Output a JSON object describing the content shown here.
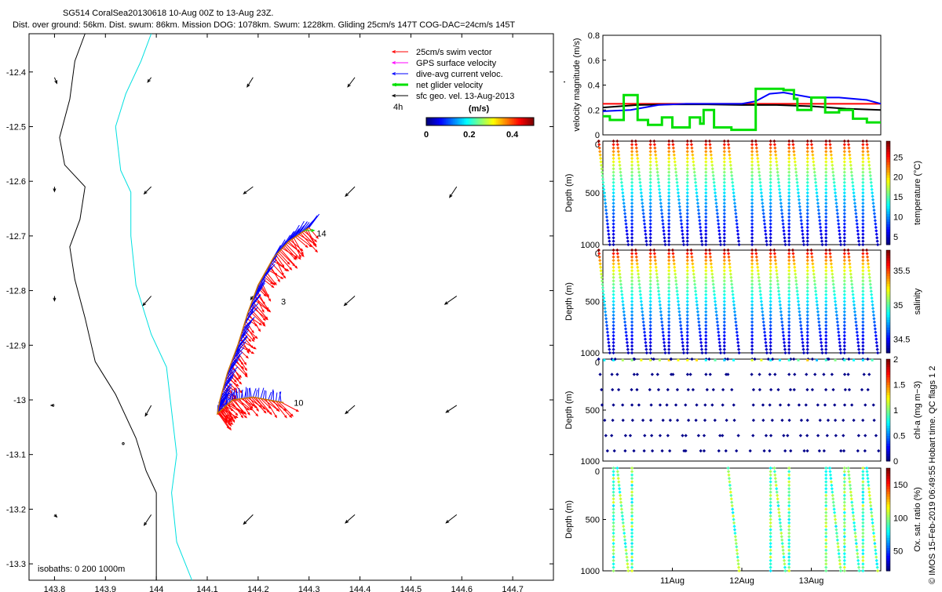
{
  "header": {
    "title_line1": "SG514 CoralSea20130618 10-Aug 00Z to 13-Aug 23Z.",
    "title_line2": "Dist. over ground: 56km. Dist. swum: 86km. Mission DOG: 1078km. Swum: 1228km. Gliding 25cm/s 147T COG-DAC=24cm/s 145T"
  },
  "footer_note": "© IMOS 15-Feb-2019 06:49:55 Hobart time. QC flags 1  2",
  "colors": {
    "swim": "#ff0000",
    "gps": "#ff00ff",
    "dac": "#0000ff",
    "net": "#00e000",
    "geo": "#000000",
    "isobath_0": "#000000",
    "isobath_200": "#00e0e0"
  },
  "chart_data": [
    {
      "type": "scatter",
      "name": "map",
      "xlim": [
        143.75,
        144.78
      ],
      "ylim": [
        -13.33,
        -12.33
      ],
      "xticks": [
        "143.8",
        "143.9",
        "144",
        "144.1",
        "144.2",
        "144.3",
        "144.4",
        "144.5",
        "144.6",
        "144.7"
      ],
      "yticks": [
        "-12.4",
        "-12.5",
        "-12.6",
        "-12.7",
        "-12.8",
        "-12.9",
        "-13",
        "-13.1",
        "-13.2",
        "-13.3"
      ],
      "legend": {
        "items": [
          "25cm/s swim vector",
          "GPS surface velocity",
          "dive-avg current veloc.",
          "net glider velocity",
          "sfc geo. vel. 13-Aug-2013"
        ],
        "interval": "4h",
        "colorbar_label": "(m/s)",
        "colorbar_ticks": [
          "0",
          "0.2",
          "0.4"
        ],
        "colorbar_range": [
          0,
          0.5
        ]
      },
      "isobaths_label": "isobaths: 0   200  1000m",
      "isobath_0m": [
        [
          143.86,
          -12.33
        ],
        [
          143.84,
          -12.38
        ],
        [
          143.83,
          -12.45
        ],
        [
          143.81,
          -12.52
        ],
        [
          143.82,
          -12.57
        ],
        [
          143.86,
          -12.61
        ],
        [
          143.85,
          -12.67
        ],
        [
          143.83,
          -12.72
        ],
        [
          143.84,
          -12.78
        ],
        [
          143.86,
          -12.85
        ],
        [
          143.88,
          -12.93
        ],
        [
          143.92,
          -12.99
        ],
        [
          143.96,
          -13.07
        ],
        [
          143.98,
          -13.13
        ],
        [
          144.0,
          -13.17
        ],
        [
          144.0,
          -13.33
        ]
      ],
      "isobath_200m": [
        [
          143.99,
          -12.33
        ],
        [
          143.97,
          -12.38
        ],
        [
          143.94,
          -12.44
        ],
        [
          143.92,
          -12.5
        ],
        [
          143.93,
          -12.58
        ],
        [
          143.95,
          -12.62
        ],
        [
          143.95,
          -12.7
        ],
        [
          143.96,
          -12.79
        ],
        [
          143.99,
          -12.88
        ],
        [
          144.02,
          -12.94
        ],
        [
          144.03,
          -13.02
        ],
        [
          144.04,
          -13.1
        ],
        [
          144.03,
          -13.17
        ],
        [
          144.04,
          -13.26
        ],
        [
          144.07,
          -13.33
        ]
      ],
      "glider_track": [
        [
          144.3,
          -12.685
        ],
        [
          144.26,
          -12.71
        ],
        [
          144.23,
          -12.74
        ],
        [
          144.2,
          -12.79
        ],
        [
          144.18,
          -12.84
        ],
        [
          144.16,
          -12.9
        ],
        [
          144.14,
          -12.95
        ],
        [
          144.125,
          -13.0
        ],
        [
          144.12,
          -13.025
        ],
        [
          144.15,
          -13.0
        ],
        [
          144.19,
          -12.995
        ],
        [
          144.25,
          -13.005
        ]
      ],
      "track_labels": [
        {
          "text": "14",
          "x": 144.315,
          "y": -12.695
        },
        {
          "text": "3",
          "x": 144.245,
          "y": -12.82
        },
        {
          "text": "10",
          "x": 144.27,
          "y": -13.005
        }
      ],
      "geo_vectors": [
        {
          "x": 143.8,
          "y": -12.41,
          "u": 0.02,
          "v": -0.05
        },
        {
          "x": 143.99,
          "y": -12.41,
          "u": -0.03,
          "v": -0.04
        },
        {
          "x": 144.19,
          "y": -12.41,
          "u": -0.05,
          "v": -0.08
        },
        {
          "x": 144.39,
          "y": -12.41,
          "u": -0.06,
          "v": -0.08
        },
        {
          "x": 143.8,
          "y": -12.61,
          "u": 0.0,
          "v": -0.04
        },
        {
          "x": 143.99,
          "y": -12.61,
          "u": -0.06,
          "v": -0.06
        },
        {
          "x": 144.19,
          "y": -12.61,
          "u": -0.08,
          "v": -0.06
        },
        {
          "x": 144.39,
          "y": -12.61,
          "u": -0.08,
          "v": -0.08
        },
        {
          "x": 144.59,
          "y": -12.61,
          "u": -0.06,
          "v": -0.09
        },
        {
          "x": 143.8,
          "y": -12.81,
          "u": 0.0,
          "v": -0.04
        },
        {
          "x": 143.99,
          "y": -12.81,
          "u": -0.07,
          "v": -0.08
        },
        {
          "x": 144.19,
          "y": -12.81,
          "u": -0.02,
          "v": -0.03
        },
        {
          "x": 144.39,
          "y": -12.81,
          "u": -0.09,
          "v": -0.08
        },
        {
          "x": 144.59,
          "y": -12.81,
          "u": -0.1,
          "v": -0.07
        },
        {
          "x": 143.8,
          "y": -13.01,
          "u": -0.03,
          "v": 0.0
        },
        {
          "x": 143.99,
          "y": -13.01,
          "u": -0.05,
          "v": -0.09
        },
        {
          "x": 144.39,
          "y": -13.01,
          "u": -0.08,
          "v": -0.07
        },
        {
          "x": 144.59,
          "y": -13.01,
          "u": -0.09,
          "v": -0.06
        },
        {
          "x": 143.8,
          "y": -13.21,
          "u": 0.02,
          "v": -0.02
        },
        {
          "x": 143.99,
          "y": -13.21,
          "u": -0.06,
          "v": -0.09
        },
        {
          "x": 144.19,
          "y": -13.21,
          "u": -0.08,
          "v": -0.08
        },
        {
          "x": 144.39,
          "y": -13.21,
          "u": -0.08,
          "v": -0.07
        },
        {
          "x": 144.59,
          "y": -13.21,
          "u": -0.09,
          "v": -0.07
        }
      ]
    },
    {
      "type": "line",
      "name": "velocity-panel",
      "ylabel": "velocity magnitude (m/s)",
      "ylim": [
        0,
        0.8
      ],
      "yticks": [
        "0",
        "0.2",
        "0.4",
        "0.6",
        "0.8"
      ],
      "xlim": [
        10.0,
        14.0
      ],
      "series": [
        {
          "color": "#ff0000",
          "x": [
            10.0,
            14.0
          ],
          "y": [
            0.25,
            0.25
          ]
        },
        {
          "color": "#000000",
          "x": [
            10.0,
            10.5,
            11.0,
            11.5,
            12.0,
            12.5,
            13.0,
            13.5,
            14.0
          ],
          "y": [
            0.22,
            0.24,
            0.245,
            0.245,
            0.24,
            0.24,
            0.23,
            0.21,
            0.2
          ]
        },
        {
          "color": "#0000ff",
          "x": [
            10.0,
            10.4,
            10.8,
            11.2,
            11.6,
            12.0,
            12.2,
            12.4,
            12.6,
            12.8,
            13.0,
            13.4,
            13.8,
            14.0
          ],
          "y": [
            0.19,
            0.2,
            0.24,
            0.25,
            0.25,
            0.25,
            0.27,
            0.33,
            0.34,
            0.32,
            0.3,
            0.3,
            0.28,
            0.25
          ]
        },
        {
          "color": "#00e000",
          "x": [
            10.0,
            10.1,
            10.1,
            10.3,
            10.3,
            10.5,
            10.5,
            10.65,
            10.65,
            10.85,
            10.85,
            11.0,
            11.0,
            11.25,
            11.25,
            11.4,
            11.4,
            11.45,
            11.45,
            11.6,
            11.6,
            11.85,
            11.85,
            12.2,
            12.2,
            12.6,
            12.6,
            12.75,
            12.75,
            12.8,
            12.8,
            13.0,
            13.0,
            13.2,
            13.2,
            13.4,
            13.4,
            13.6,
            13.6,
            13.8,
            13.8,
            14.0
          ],
          "y": [
            0.15,
            0.15,
            0.12,
            0.12,
            0.32,
            0.32,
            0.12,
            0.12,
            0.08,
            0.08,
            0.14,
            0.14,
            0.06,
            0.06,
            0.14,
            0.14,
            0.09,
            0.09,
            0.2,
            0.2,
            0.06,
            0.06,
            0.04,
            0.04,
            0.37,
            0.37,
            0.36,
            0.36,
            0.29,
            0.29,
            0.2,
            0.2,
            0.3,
            0.3,
            0.18,
            0.18,
            0.2,
            0.2,
            0.13,
            0.13,
            0.1,
            0.1
          ]
        }
      ]
    },
    {
      "type": "scatter",
      "name": "temperature-panel",
      "ylabel": "Depth (m)",
      "cbar_label": "temperature (°C)",
      "ylim": [
        0,
        1000
      ],
      "yticks": [
        "0",
        "500",
        "1000"
      ],
      "cbar_ticks": [
        "5",
        "10",
        "15",
        "20",
        "25"
      ],
      "cbar_range": [
        3,
        29
      ]
    },
    {
      "type": "scatter",
      "name": "salinity-panel",
      "ylabel": "Depth (m)",
      "cbar_label": "salinity",
      "ylim": [
        0,
        1000
      ],
      "yticks": [
        "0",
        "500",
        "1000"
      ],
      "cbar_ticks": [
        "34.5",
        "35",
        "35.5"
      ],
      "cbar_range": [
        34.3,
        35.8
      ]
    },
    {
      "type": "scatter",
      "name": "chl-panel",
      "ylabel": "Depth (m)",
      "cbar_label": "chl-a (mg m−3)",
      "ylim": [
        0,
        1000
      ],
      "yticks": [
        "0",
        "500",
        "1000"
      ],
      "cbar_ticks": [
        "0",
        "0.5",
        "1",
        "1.5",
        "2"
      ],
      "cbar_range": [
        0,
        2
      ]
    },
    {
      "type": "scatter",
      "name": "oxygen-panel",
      "ylabel": "Depth (m)",
      "cbar_label": "Ox. sat. ratio (%)",
      "ylim": [
        0,
        1000
      ],
      "yticks": [
        "0",
        "500",
        "1000"
      ],
      "cbar_ticks": [
        "50",
        "100",
        "150"
      ],
      "cbar_range": [
        20,
        175
      ],
      "xticks": [
        "11Aug",
        "12Aug",
        "13Aug"
      ],
      "xtick_values": [
        11,
        12,
        13
      ]
    }
  ]
}
